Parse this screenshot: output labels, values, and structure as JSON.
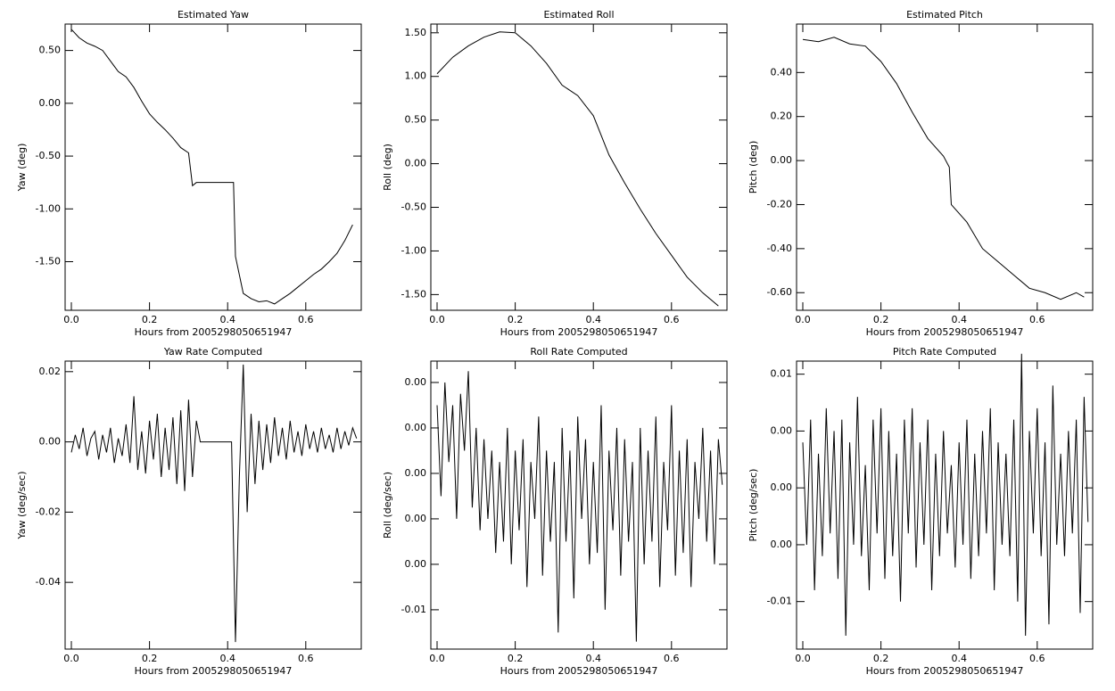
{
  "chart_data": [
    {
      "type": "line",
      "title": "Estimated Yaw",
      "xlabel": "Hours from 2005298050651947",
      "ylabel": "Yaw (deg)",
      "x": [
        0,
        0.02,
        0.04,
        0.06,
        0.08,
        0.1,
        0.12,
        0.14,
        0.16,
        0.18,
        0.2,
        0.22,
        0.24,
        0.26,
        0.28,
        0.3,
        0.31,
        0.32,
        0.36,
        0.4,
        0.415,
        0.42,
        0.44,
        0.46,
        0.48,
        0.5,
        0.52,
        0.54,
        0.56,
        0.58,
        0.6,
        0.62,
        0.64,
        0.66,
        0.68,
        0.7,
        0.72
      ],
      "series": [
        {
          "name": "Yaw",
          "color": "#000000",
          "values": [
            0.7,
            0.62,
            0.57,
            0.54,
            0.5,
            0.4,
            0.3,
            0.25,
            0.15,
            0.02,
            -0.1,
            -0.18,
            -0.25,
            -0.33,
            -0.42,
            -0.47,
            -0.78,
            -0.75,
            -0.75,
            -0.75,
            -0.75,
            -1.45,
            -1.8,
            -1.85,
            -1.88,
            -1.87,
            -1.9,
            -1.85,
            -1.8,
            -1.74,
            -1.68,
            -1.62,
            -1.57,
            -1.5,
            -1.42,
            -1.3,
            -1.15
          ]
        }
      ],
      "xlim": [
        -0.016,
        0.742
      ],
      "xticks": [
        {
          "value": 0,
          "label": "0.0"
        },
        0.2,
        0.4,
        0.6
      ],
      "ylim": [
        -1.96,
        0.75
      ],
      "yticks": [
        {
          "value": 0.5,
          "label": "0.50"
        },
        {
          "value": 0,
          "label": "0.00"
        },
        {
          "value": -0.5,
          "label": "-0.50"
        },
        {
          "value": -1,
          "label": "-1.00"
        },
        {
          "value": -1.5,
          "label": "-1.50"
        }
      ]
    },
    {
      "type": "line",
      "title": "Estimated Roll",
      "xlabel": "Hours from 2005298050651947",
      "ylabel": "Roll (deg)",
      "x": [
        0,
        0.04,
        0.08,
        0.12,
        0.16,
        0.2,
        0.24,
        0.28,
        0.32,
        0.36,
        0.4,
        0.44,
        0.48,
        0.52,
        0.56,
        0.6,
        0.64,
        0.68,
        0.72
      ],
      "series": [
        {
          "name": "Roll",
          "color": "#000000",
          "values": [
            1.03,
            1.22,
            1.35,
            1.45,
            1.51,
            1.5,
            1.35,
            1.15,
            0.9,
            0.78,
            0.55,
            0.1,
            -0.22,
            -0.52,
            -0.8,
            -1.05,
            -1.3,
            -1.48,
            -1.63
          ]
        }
      ],
      "xlim": [
        -0.016,
        0.742
      ],
      "xticks": [
        {
          "value": 0,
          "label": "0.0"
        },
        0.2,
        0.4,
        0.6
      ],
      "ylim": [
        -1.68,
        1.6
      ],
      "yticks": [
        {
          "value": 1.5,
          "label": "1.50"
        },
        {
          "value": 1,
          "label": "1.00"
        },
        {
          "value": 0.5,
          "label": "0.50"
        },
        {
          "value": 0,
          "label": "0.00"
        },
        {
          "value": -0.5,
          "label": "-0.50"
        },
        {
          "value": -1,
          "label": "-1.00"
        },
        {
          "value": -1.5,
          "label": "-1.50"
        }
      ]
    },
    {
      "type": "line",
      "title": "Estimated Pitch",
      "xlabel": "Hours from 2005298050651947",
      "ylabel": "Pitch (deg)",
      "x": [
        0,
        0.04,
        0.08,
        0.12,
        0.16,
        0.2,
        0.24,
        0.28,
        0.32,
        0.36,
        0.375,
        0.38,
        0.42,
        0.46,
        0.5,
        0.54,
        0.58,
        0.62,
        0.66,
        0.7,
        0.72
      ],
      "series": [
        {
          "name": "Pitch",
          "color": "#000000",
          "values": [
            0.55,
            0.54,
            0.56,
            0.53,
            0.52,
            0.45,
            0.35,
            0.22,
            0.1,
            0.02,
            -0.03,
            -0.2,
            -0.28,
            -0.4,
            -0.46,
            -0.52,
            -0.58,
            -0.6,
            -0.63,
            -0.6,
            -0.62
          ]
        }
      ],
      "xlim": [
        -0.016,
        0.742
      ],
      "xticks": [
        {
          "value": 0,
          "label": "0.0"
        },
        0.2,
        0.4,
        0.6
      ],
      "ylim": [
        -0.68,
        0.62
      ],
      "yticks": [
        {
          "value": 0.4,
          "label": "0.40"
        },
        {
          "value": 0.2,
          "label": "0.20"
        },
        {
          "value": 0,
          "label": "0.00"
        },
        {
          "value": -0.2,
          "label": "-0.20"
        },
        {
          "value": -0.4,
          "label": "-0.40"
        },
        {
          "value": -0.6,
          "label": "-0.60"
        }
      ]
    },
    {
      "type": "line",
      "title": "Yaw Rate Computed",
      "xlabel": "Hours from 2005298050651947",
      "ylabel": "Yaw (deg/sec)",
      "x": [
        0,
        0.01,
        0.02,
        0.03,
        0.04,
        0.05,
        0.06,
        0.07,
        0.08,
        0.09,
        0.1,
        0.11,
        0.12,
        0.13,
        0.14,
        0.15,
        0.16,
        0.17,
        0.18,
        0.19,
        0.2,
        0.21,
        0.22,
        0.23,
        0.24,
        0.25,
        0.26,
        0.27,
        0.28,
        0.29,
        0.3,
        0.31,
        0.32,
        0.33,
        0.34,
        0.35,
        0.36,
        0.37,
        0.38,
        0.39,
        0.4,
        0.41,
        0.42,
        0.43,
        0.44,
        0.45,
        0.46,
        0.47,
        0.48,
        0.49,
        0.5,
        0.51,
        0.52,
        0.53,
        0.54,
        0.55,
        0.56,
        0.57,
        0.58,
        0.59,
        0.6,
        0.61,
        0.62,
        0.63,
        0.64,
        0.65,
        0.66,
        0.67,
        0.68,
        0.69,
        0.7,
        0.71,
        0.72,
        0.73
      ],
      "series": [
        {
          "name": "Yaw Rate",
          "color": "#000000",
          "values": [
            -0.003,
            0.002,
            -0.002,
            0.004,
            -0.004,
            0.001,
            0.003,
            -0.005,
            0.002,
            -0.003,
            0.004,
            -0.006,
            0.001,
            -0.004,
            0.005,
            -0.006,
            0.013,
            -0.008,
            0.003,
            -0.009,
            0.006,
            -0.005,
            0.008,
            -0.01,
            0.004,
            -0.008,
            0.007,
            -0.012,
            0.009,
            -0.014,
            0.012,
            -0.01,
            0.006,
            0,
            0,
            0,
            0,
            0,
            0,
            0,
            0,
            0,
            -0.057,
            -0.01,
            0.022,
            -0.02,
            0.008,
            -0.012,
            0.006,
            -0.008,
            0.005,
            -0.006,
            0.007,
            -0.004,
            0.004,
            -0.005,
            0.006,
            -0.003,
            0.003,
            -0.004,
            0.005,
            -0.002,
            0.003,
            -0.003,
            0.004,
            -0.002,
            0.002,
            -0.003,
            0.004,
            -0.002,
            0.003,
            -0.001,
            0.004,
            0.001
          ]
        }
      ],
      "xlim": [
        -0.016,
        0.742
      ],
      "xticks": [
        {
          "value": 0,
          "label": "0.0"
        },
        0.2,
        0.4,
        0.6
      ],
      "ylim": [
        -0.059,
        0.023
      ],
      "yticks": [
        0.02,
        {
          "value": 0,
          "label": "0.00"
        },
        -0.02,
        -0.04
      ]
    },
    {
      "type": "line",
      "title": "Roll Rate Computed",
      "xlabel": "Hours from 2005298050651947",
      "ylabel": "Roll (deg/sec)",
      "x": [
        0,
        0.01,
        0.02,
        0.03,
        0.04,
        0.05,
        0.06,
        0.07,
        0.08,
        0.09,
        0.1,
        0.11,
        0.12,
        0.13,
        0.14,
        0.15,
        0.16,
        0.17,
        0.18,
        0.19,
        0.2,
        0.21,
        0.22,
        0.23,
        0.24,
        0.25,
        0.26,
        0.27,
        0.28,
        0.29,
        0.3,
        0.31,
        0.32,
        0.33,
        0.34,
        0.35,
        0.36,
        0.37,
        0.38,
        0.39,
        0.4,
        0.41,
        0.42,
        0.43,
        0.44,
        0.45,
        0.46,
        0.47,
        0.48,
        0.49,
        0.5,
        0.51,
        0.52,
        0.53,
        0.54,
        0.55,
        0.56,
        0.57,
        0.58,
        0.59,
        0.6,
        0.61,
        0.62,
        0.63,
        0.64,
        0.65,
        0.66,
        0.67,
        0.68,
        0.69,
        0.7,
        0.71,
        0.72,
        0.73
      ],
      "series": [
        {
          "name": "Roll Rate",
          "color": "#000000",
          "values": [
            0.003,
            -0.001,
            0.004,
            0.0005,
            0.003,
            -0.002,
            0.0035,
            0.001,
            0.0045,
            -0.0015,
            0.002,
            -0.0025,
            0.0015,
            -0.002,
            0.001,
            -0.0035,
            0.0005,
            -0.003,
            0.002,
            -0.004,
            0.001,
            -0.0025,
            0.0015,
            -0.005,
            0.0005,
            -0.002,
            0.0025,
            -0.0045,
            0.001,
            -0.003,
            0.0005,
            -0.007,
            0.002,
            -0.003,
            0.001,
            -0.0055,
            0.0025,
            -0.002,
            0.0015,
            -0.004,
            0.0005,
            -0.0035,
            0.003,
            -0.006,
            0.001,
            -0.0025,
            0.002,
            -0.0045,
            0.0015,
            -0.003,
            0.0005,
            -0.0074,
            0.002,
            -0.004,
            0.001,
            -0.003,
            0.0025,
            -0.005,
            0.0005,
            -0.0025,
            0.003,
            -0.0045,
            0.001,
            -0.0035,
            0.0015,
            -0.005,
            0.0005,
            -0.002,
            0.002,
            -0.003,
            0.001,
            -0.004,
            0.0015,
            -0.0005
          ]
        }
      ],
      "xlim": [
        -0.016,
        0.742
      ],
      "xticks": [
        {
          "value": 0,
          "label": "0.0"
        },
        0.2,
        0.4,
        0.6
      ],
      "ylim": [
        -0.00773,
        0.00494
      ],
      "yticks": [
        {
          "value": 0.004,
          "label": "0.00"
        },
        {
          "value": 0.002,
          "label": "0.00"
        },
        {
          "value": 0,
          "label": "0.00"
        },
        {
          "value": -0.002,
          "label": "0.00"
        },
        {
          "value": -0.004,
          "label": "0.00"
        },
        {
          "value": -0.006,
          "label": "-0.01"
        }
      ]
    },
    {
      "type": "line",
      "title": "Pitch Rate Computed",
      "xlabel": "Hours from 2005298050651947",
      "ylabel": "Pitch (deg/sec)",
      "x": [
        0,
        0.01,
        0.02,
        0.03,
        0.04,
        0.05,
        0.06,
        0.07,
        0.08,
        0.09,
        0.1,
        0.11,
        0.12,
        0.13,
        0.14,
        0.15,
        0.16,
        0.17,
        0.18,
        0.19,
        0.2,
        0.21,
        0.22,
        0.23,
        0.24,
        0.25,
        0.26,
        0.27,
        0.28,
        0.29,
        0.3,
        0.31,
        0.32,
        0.33,
        0.34,
        0.35,
        0.36,
        0.37,
        0.38,
        0.39,
        0.4,
        0.41,
        0.42,
        0.43,
        0.44,
        0.45,
        0.46,
        0.47,
        0.48,
        0.49,
        0.5,
        0.51,
        0.52,
        0.53,
        0.54,
        0.55,
        0.56,
        0.57,
        0.58,
        0.59,
        0.6,
        0.61,
        0.62,
        0.63,
        0.64,
        0.65,
        0.66,
        0.67,
        0.68,
        0.69,
        0.7,
        0.71,
        0.72,
        0.73
      ],
      "series": [
        {
          "name": "Pitch Rate",
          "color": "#000000",
          "values": [
            0.004,
            -0.005,
            0.006,
            -0.009,
            0.003,
            -0.006,
            0.007,
            -0.004,
            0.005,
            -0.008,
            0.006,
            -0.013,
            0.004,
            -0.005,
            0.008,
            -0.006,
            0.002,
            -0.009,
            0.006,
            -0.004,
            0.007,
            -0.008,
            0.005,
            -0.006,
            0.003,
            -0.01,
            0.006,
            -0.004,
            0.007,
            -0.007,
            0.004,
            -0.005,
            0.006,
            -0.009,
            0.003,
            -0.006,
            0.005,
            -0.004,
            0.002,
            -0.007,
            0.004,
            -0.005,
            0.006,
            -0.008,
            0.003,
            -0.006,
            0.005,
            -0.004,
            0.007,
            -0.009,
            0.004,
            -0.005,
            0.003,
            -0.006,
            0.006,
            -0.01,
            0.0118,
            -0.013,
            0.005,
            -0.004,
            0.007,
            -0.006,
            0.004,
            -0.012,
            0.009,
            -0.005,
            0.003,
            -0.006,
            0.005,
            -0.004,
            0.006,
            -0.011,
            0.008,
            -0.003
          ]
        }
      ],
      "xlim": [
        -0.016,
        0.742
      ],
      "xticks": [
        {
          "value": 0,
          "label": "0.0"
        },
        0.2,
        0.4,
        0.6
      ],
      "ylim": [
        -0.01418,
        0.01115
      ],
      "yticks": [
        0.01,
        {
          "value": 0.005,
          "label": "0.00"
        },
        {
          "value": 0,
          "label": "0.00"
        },
        {
          "value": -0.005,
          "label": "0.00"
        },
        -0.01
      ]
    }
  ]
}
